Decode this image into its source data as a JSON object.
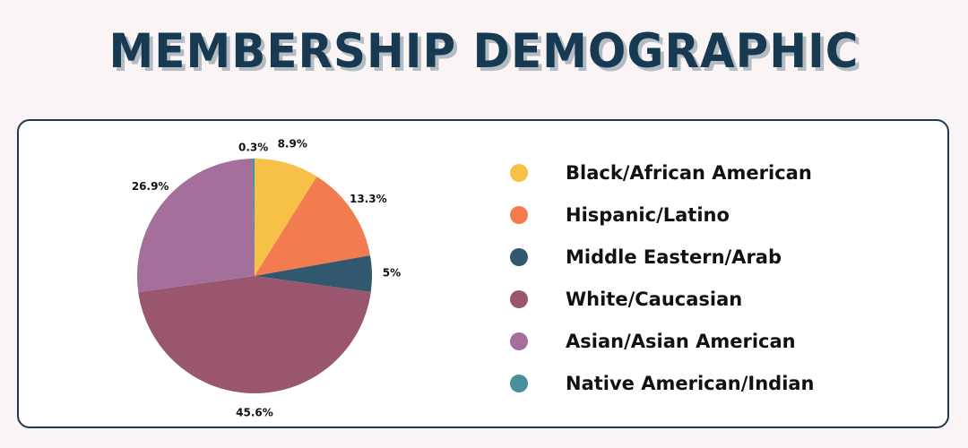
{
  "chart_data": {
    "type": "pie",
    "title": "Membership Demographic",
    "slices": [
      {
        "label": "Black/African American",
        "value": 8.9,
        "value_label": "8.9%",
        "color": "#f7c046"
      },
      {
        "label": "Hispanic/Latino",
        "value": 13.3,
        "value_label": "13.3%",
        "color": "#f27b50"
      },
      {
        "label": "Middle Eastern/Arab",
        "value": 5,
        "value_label": "5%",
        "color": "#325870"
      },
      {
        "label": "White/Caucasian",
        "value": 45.6,
        "value_label": "45.6%",
        "color": "#9a566f"
      },
      {
        "label": "Asian/Asian American",
        "value": 26.9,
        "value_label": "26.9%",
        "color": "#a46f9a"
      },
      {
        "label": "Native American/Indian",
        "value": 0.3,
        "value_label": "0.3%",
        "color": "#4a8d9b"
      }
    ],
    "legend_position": "right"
  }
}
